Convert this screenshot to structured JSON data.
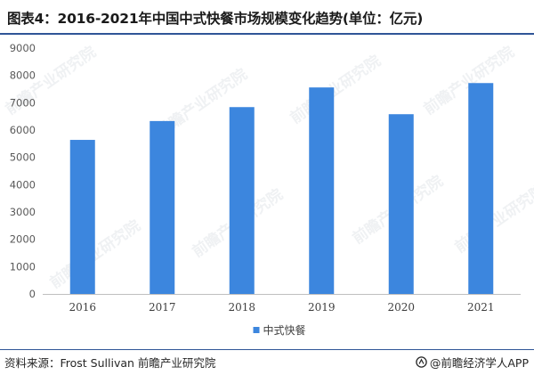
{
  "title": "图表4：2016-2021年中国中式快餐市场规模变化趋势(单位：亿元)",
  "source_text": "资料来源：Frost Sullivan 前瞻产业研究院",
  "brand_text": "@前瞻经济学人APP",
  "watermark_text": "前瞻产业研究院",
  "colors": {
    "bar": "#3c86de",
    "title_rule": "#2f5597",
    "axis": "#bfbfbf",
    "tick_text": "#595959"
  },
  "chart_data": {
    "type": "bar",
    "categories": [
      "2016",
      "2017",
      "2018",
      "2019",
      "2020",
      "2021"
    ],
    "series": [
      {
        "name": "中式快餐",
        "values": [
          5640,
          6330,
          6840,
          7560,
          6580,
          7720
        ]
      }
    ],
    "ylim": [
      0,
      9000
    ],
    "yticks": [
      0,
      1000,
      2000,
      3000,
      4000,
      5000,
      6000,
      7000,
      8000,
      9000
    ],
    "title": "图表4：2016-2021年中国中式快餐市场规模变化趋势(单位：亿元)",
    "xlabel": "",
    "ylabel": "",
    "grid": false,
    "legend_position": "bottom"
  }
}
